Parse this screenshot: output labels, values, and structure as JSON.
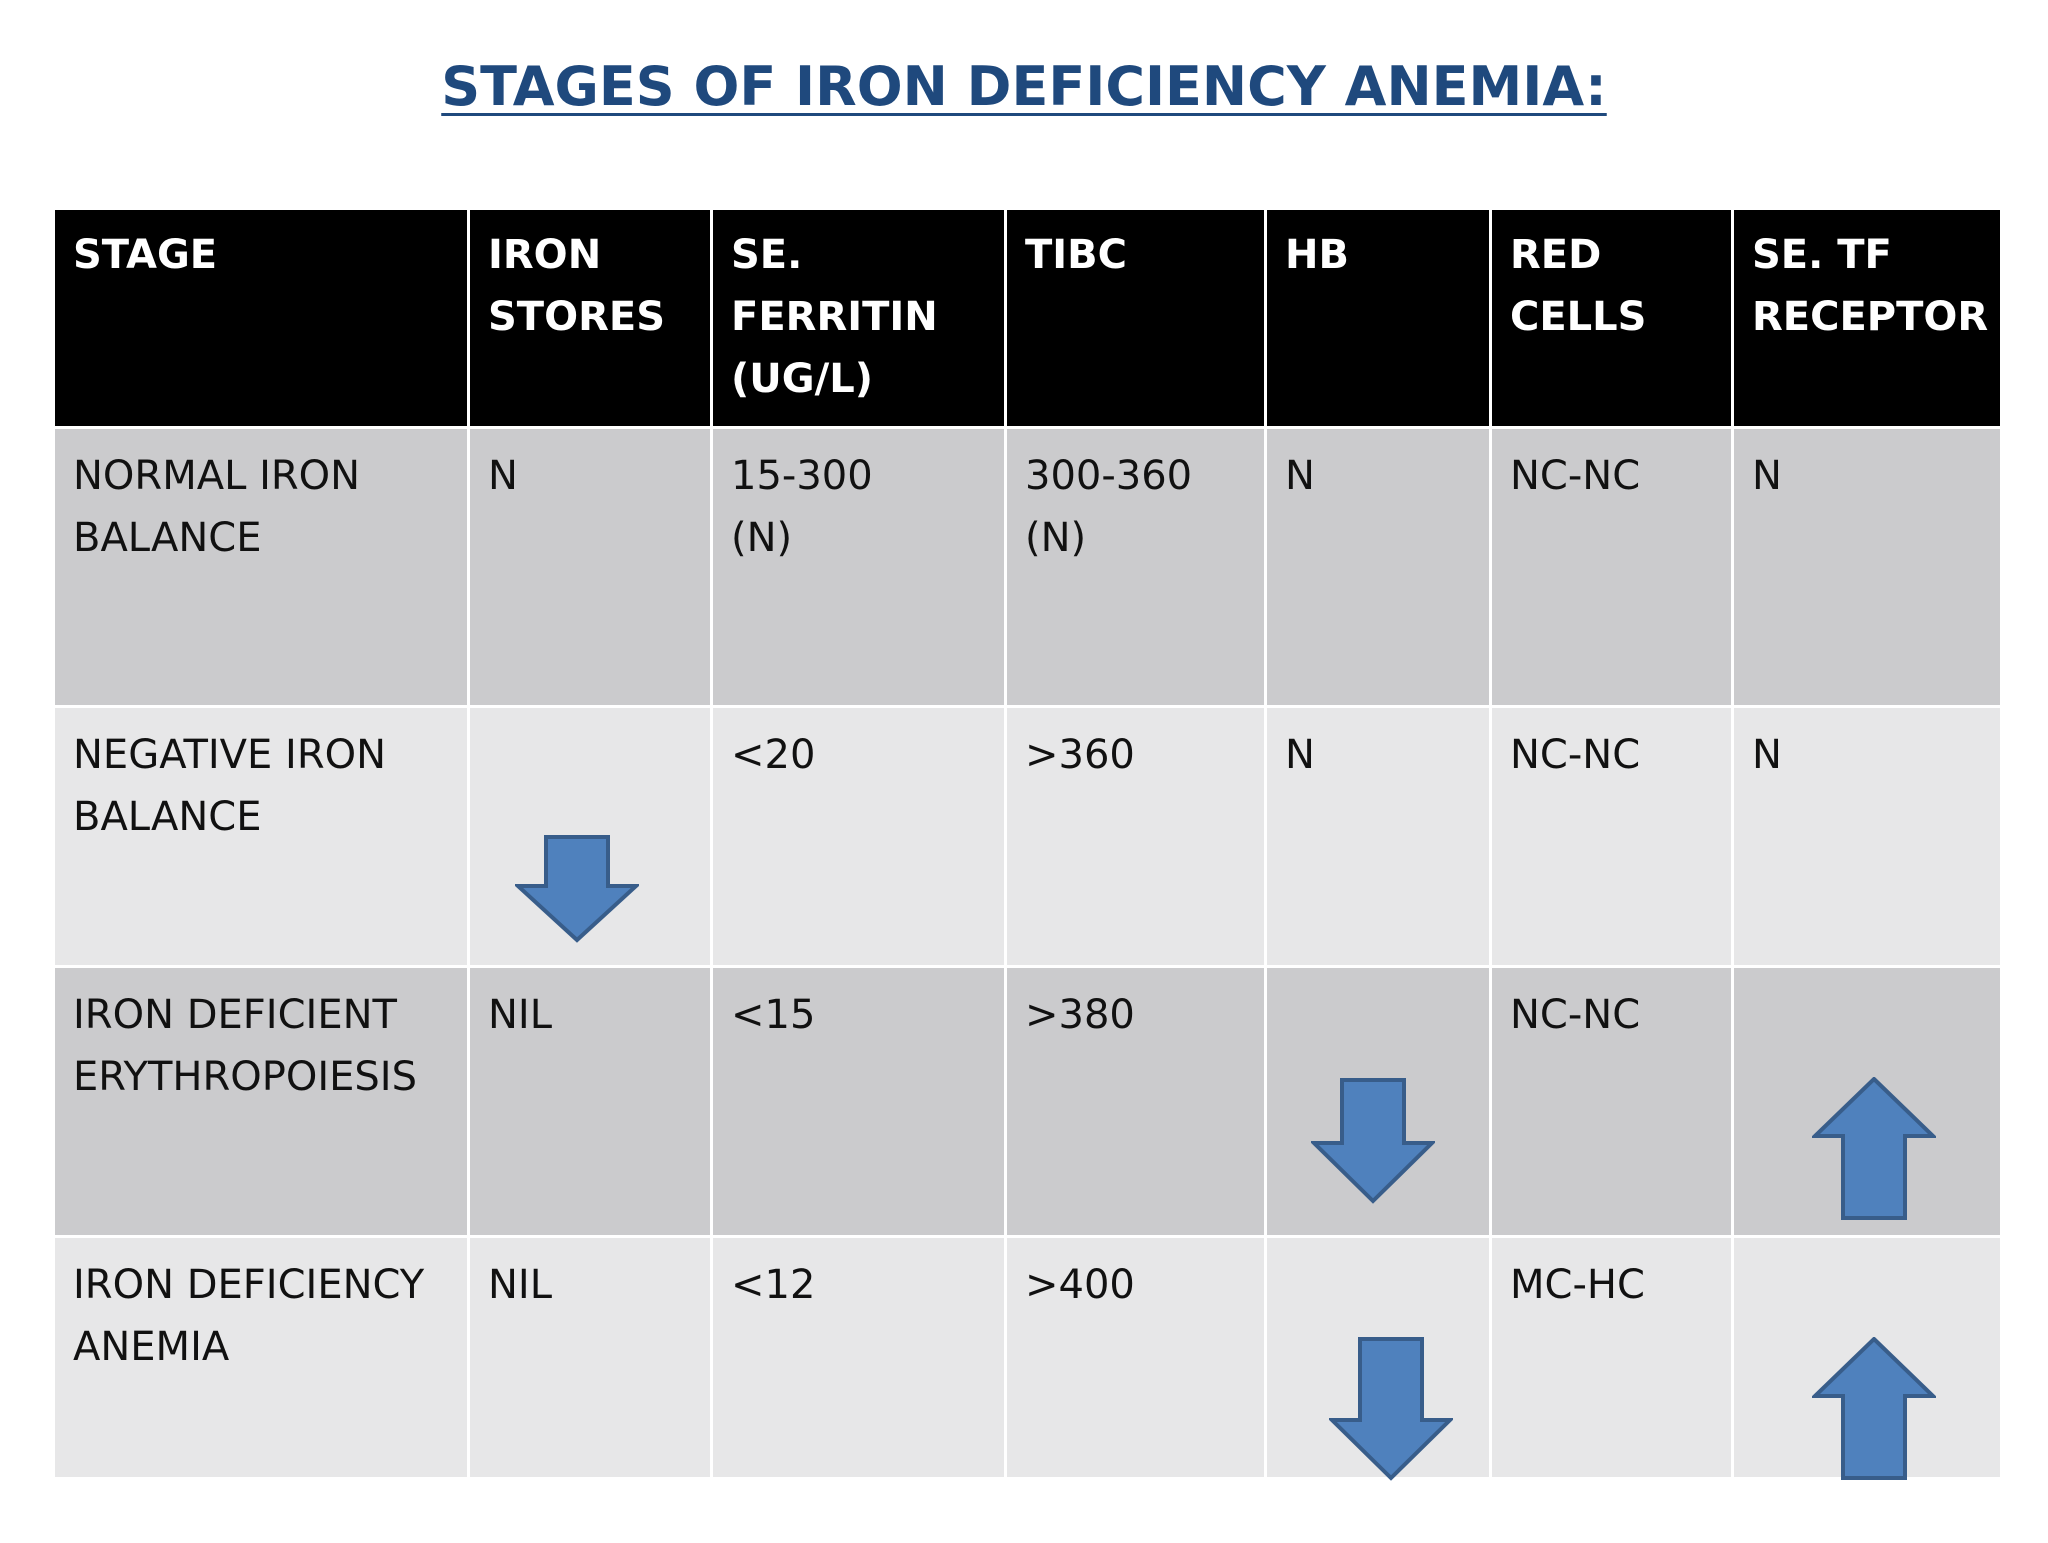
{
  "title": "STAGES OF IRON DEFICIENCY ANEMIA:",
  "table": {
    "headers": [
      "STAGE",
      "IRON\nSTORES",
      "SE.\nFERRITIN\n(UG/L)",
      "TIBC",
      "HB",
      "RED\nCELLS",
      "SE. TF\nRECEPTOR"
    ],
    "rows": [
      {
        "stage": "NORMAL IRON\nBALANCE",
        "iron_stores": "N",
        "ferritin": "15-300\n(N)",
        "tibc": "300-360\n(N)",
        "hb": "N",
        "red_cells": "NC-NC",
        "tf_receptor": "N"
      },
      {
        "stage": "NEGATIVE IRON\nBALANCE",
        "iron_stores": "",
        "iron_stores_icon": "arrow-down-icon",
        "ferritin": "<20",
        "tibc": ">360",
        "hb": "N",
        "red_cells": "NC-NC",
        "tf_receptor": "N"
      },
      {
        "stage": "IRON DEFICIENT\nERYTHROPOIESIS",
        "iron_stores": "NIL",
        "ferritin": "<15",
        "tibc": ">380",
        "hb": "",
        "hb_icon": "arrow-down-icon",
        "red_cells": "NC-NC",
        "tf_receptor": "",
        "tf_receptor_icon": "arrow-up-icon"
      },
      {
        "stage": "IRON DEFICIENCY\nANEMIA",
        "iron_stores": "NIL",
        "ferritin": "<12",
        "tibc": ">400",
        "hb": "",
        "hb_icon": "arrow-down-icon",
        "red_cells": "MC-HC",
        "tf_receptor": "",
        "tf_receptor_icon": "arrow-up-icon"
      }
    ]
  },
  "colors": {
    "title": "#1F497D",
    "header_bg": "#000000",
    "row_dark": "#cbcbcd",
    "row_light": "#e7e7e8",
    "arrow_fill": "#4F81BD",
    "arrow_stroke": "#385D8A"
  }
}
